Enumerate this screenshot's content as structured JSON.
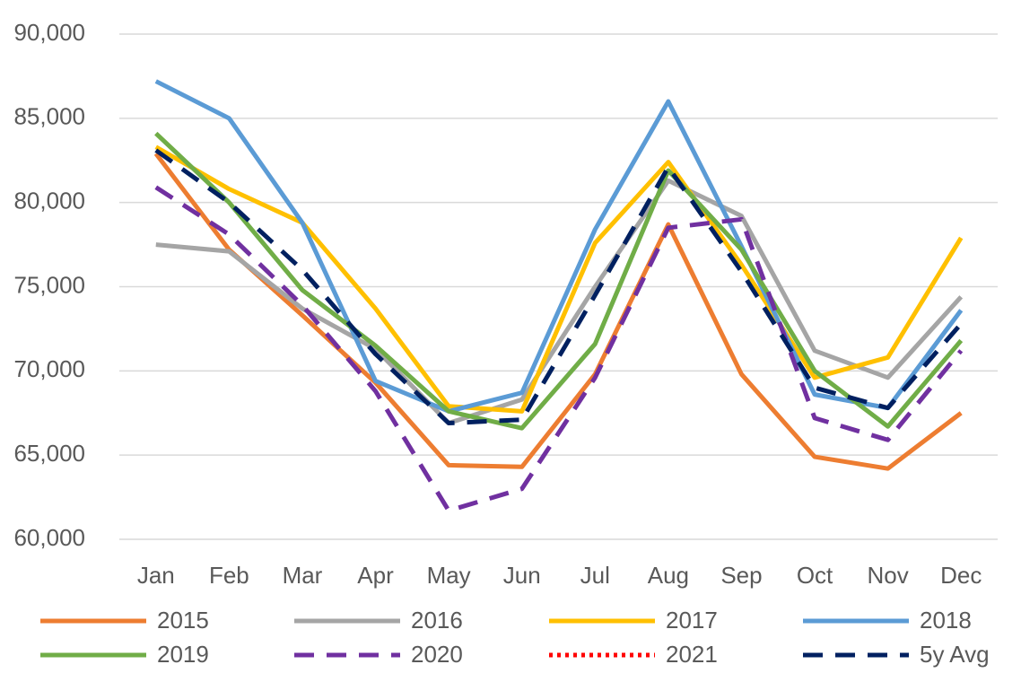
{
  "chart_data": {
    "type": "line",
    "categories": [
      "Jan",
      "Feb",
      "Mar",
      "Apr",
      "May",
      "Jun",
      "Jul",
      "Aug",
      "Sep",
      "Oct",
      "Nov",
      "Dec"
    ],
    "series": [
      {
        "name": "2015",
        "color": "#ed7d31",
        "line_style": "solid",
        "values": [
          82900,
          77200,
          73300,
          69300,
          64400,
          64300,
          69800,
          78700,
          69800,
          64900,
          64200,
          67500
        ]
      },
      {
        "name": "2016",
        "color": "#a5a5a5",
        "line_style": "solid",
        "values": [
          77500,
          77100,
          73700,
          71300,
          66900,
          68300,
          75000,
          81300,
          79200,
          71200,
          69600,
          74400
        ]
      },
      {
        "name": "2017",
        "color": "#ffc000",
        "line_style": "solid",
        "values": [
          83300,
          80800,
          78800,
          73700,
          67900,
          67600,
          77600,
          82400,
          76300,
          69600,
          70800,
          77900
        ]
      },
      {
        "name": "2018",
        "color": "#5b9bd5",
        "line_style": "solid",
        "values": [
          87200,
          85000,
          78800,
          69400,
          67600,
          68700,
          78400,
          86000,
          77400,
          68600,
          67800,
          73600
        ]
      },
      {
        "name": "2019",
        "color": "#70ad47",
        "line_style": "solid",
        "values": [
          84100,
          80000,
          74800,
          71500,
          67600,
          66600,
          71600,
          81900,
          77200,
          70000,
          66700,
          71800
        ]
      },
      {
        "name": "2020",
        "color": "#7030a0",
        "line_style": "dashed",
        "values": [
          80900,
          78100,
          73900,
          68800,
          61700,
          63000,
          69600,
          78500,
          79000,
          67200,
          65900,
          71200
        ]
      },
      {
        "name": "2021",
        "color": "#ff0000",
        "line_style": "dotted",
        "values": [
          null,
          null,
          null,
          null,
          null,
          null,
          null,
          null,
          null,
          null,
          null,
          null
        ]
      },
      {
        "name": "5y Avg",
        "color": "#002060",
        "line_style": "dashed",
        "values": [
          83100,
          80000,
          76000,
          71000,
          66900,
          67100,
          74500,
          82100,
          75900,
          69000,
          67800,
          72800
        ]
      }
    ],
    "ylim": [
      60000,
      90000
    ],
    "yticks": [
      {
        "value": 60000,
        "label": "60,000"
      },
      {
        "value": 65000,
        "label": "65,000"
      },
      {
        "value": 70000,
        "label": "70,000"
      },
      {
        "value": 75000,
        "label": "75,000"
      },
      {
        "value": 80000,
        "label": "80,000"
      },
      {
        "value": 85000,
        "label": "85,000"
      },
      {
        "value": 90000,
        "label": "90,000"
      }
    ],
    "grid": true,
    "legend": "bottom"
  }
}
